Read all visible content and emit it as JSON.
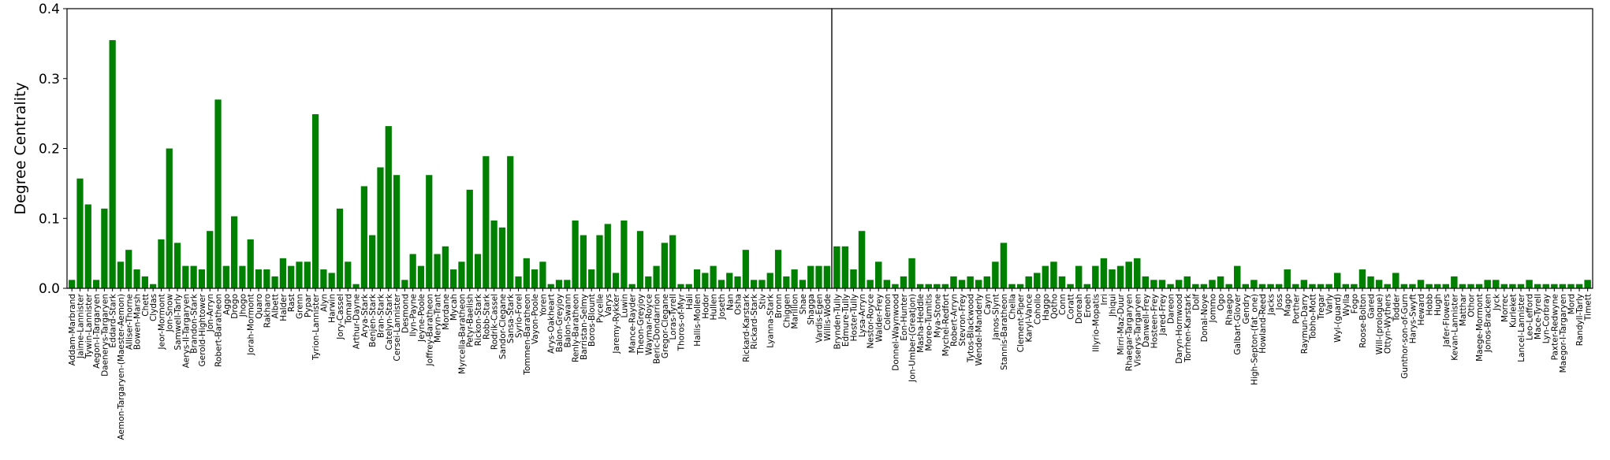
{
  "chart_data": [
    {
      "type": "bar",
      "y_label": "Degree Centrality",
      "color": "#008000",
      "ylim": [
        0,
        0.4
      ],
      "yticks": [
        {
          "value": 0,
          "label": "0.0"
        },
        0.1,
        0.2,
        0.3,
        0.4
      ],
      "categories": [
        "Addam-Marbrand",
        "Jaime-Lannister",
        "Tywin-Lannister",
        "Aegon-I-Targaryen",
        "Daenerys-Targaryen",
        "Eddard-Stark",
        "Aemon-Targaryen-(Maester-Aemon)",
        "Alliser-Thorne",
        "Bowen-Marsh",
        "Chett",
        "Clydas",
        "Jeor-Mormont",
        "Jon-Snow",
        "Samwell-Tarly",
        "Aerys-II-Targaryen",
        "Brandon-Stark",
        "Gerold-Hightower",
        "Jon-Arryn",
        "Robert-Baratheon",
        "Aggo",
        "Drogo",
        "Jhogo",
        "Jorah-Mormont",
        "Quaro",
        "Rakharo",
        "Albett",
        "Halder",
        "Rast",
        "Grenn",
        "Pypar",
        "Tyrion-Lannister",
        "Alyn",
        "Harwin",
        "Jory-Cassel",
        "Tomard",
        "Arthur-Dayne",
        "Arya-Stark",
        "Benjen-Stark",
        "Bran-Stark",
        "Catelyn-Stark",
        "Cersei-Lannister",
        "Desmond",
        "Ilyn-Payne",
        "Jeyne-Poole",
        "Joffrey-Baratheon",
        "Meryn-Trant",
        "Mordane",
        "Mycah",
        "Myrcella-Baratheon",
        "Petyr-Baelish",
        "Rickon-Stark",
        "Robb-Stark",
        "Rodrik-Cassel",
        "Sandor-Clegane",
        "Sansa-Stark",
        "Syrio-Forel",
        "Tommen-Baratheon",
        "Vayon-Poole",
        "Yoren",
        "Arys-Oakheart",
        "Balon-Greyjoy",
        "Balon-Swann",
        "Renly-Baratheon",
        "Barristan-Selmy",
        "Boros-Blount",
        "Pycelle",
        "Varys",
        "Jaremy-Rykker",
        "Luwin",
        "Mance-Rayder",
        "Theon-Greyjoy",
        "Waymar-Royce",
        "Beric-Dondarrion",
        "Gregor-Clegane",
        "Loras-Tyrell",
        "Thoros-of-Myr",
        "Hali",
        "Hallis-Mollen",
        "Hodor",
        "Hullen",
        "Joseth",
        "Nan",
        "Osha",
        "Rickard-Karstark",
        "Rickard-Stark",
        "Stiv",
        "Lyanna-Stark",
        "Bronn",
        "Chiggen",
        "Marillion",
        "Shae",
        "Shagga",
        "Vardis-Egen",
        "Willis-Wode"
      ],
      "values": [
        0.012,
        0.157,
        0.12,
        0.012,
        0.114,
        0.355,
        0.038,
        0.055,
        0.027,
        0.017,
        0.006,
        0.07,
        0.2,
        0.065,
        0.032,
        0.032,
        0.027,
        0.082,
        0.27,
        0.032,
        0.103,
        0.032,
        0.07,
        0.027,
        0.027,
        0.017,
        0.043,
        0.032,
        0.038,
        0.038,
        0.249,
        0.027,
        0.022,
        0.114,
        0.038,
        0.006,
        0.146,
        0.076,
        0.173,
        0.232,
        0.162,
        0.012,
        0.049,
        0.032,
        0.162,
        0.049,
        0.06,
        0.027,
        0.038,
        0.141,
        0.049,
        0.189,
        0.097,
        0.087,
        0.189,
        0.017,
        0.043,
        0.027,
        0.038,
        0.006,
        0.012,
        0.012,
        0.097,
        0.076,
        0.027,
        0.076,
        0.092,
        0.022,
        0.097,
        0.006,
        0.082,
        0.017,
        0.032,
        0.065,
        0.076,
        0.006,
        0.006,
        0.027,
        0.022,
        0.032,
        0.012,
        0.022,
        0.017,
        0.055,
        0.012,
        0.012,
        0.022,
        0.055,
        0.017,
        0.027,
        0.012,
        0.032,
        0.032,
        0.032
      ]
    },
    {
      "type": "bar",
      "color": "#008000",
      "ylim": [
        0,
        0.4
      ],
      "categories": [
        "Brynden-Tully",
        "Edmure-Tully",
        "Hoster-Tully",
        "Lysa-Arryn",
        "Nestor-Royce",
        "Walder-Frey",
        "Colemon",
        "Donnel-Waynwood",
        "Eon-Hunter",
        "Jon-Umber-(Greatjon)",
        "Masha-Heddle",
        "Moreo-Tumitis",
        "Mya-Stone",
        "Mychel-Redfort",
        "Robert-Arryn",
        "Stevron-Frey",
        "Tytos-Blackwood",
        "Wendel-Manderly",
        "Cayn",
        "Janos-Slynt",
        "Stannis-Baratheon",
        "Chella",
        "Clement-Piper",
        "Karyl-Vance",
        "Cohollo",
        "Haggo",
        "Qotho",
        "Conn",
        "Coratt",
        "Doreah",
        "Eroeh",
        "Illyrio-Mopatis",
        "Irri",
        "Jhiqui",
        "Mirri-Maz-Duur",
        "Rhaegar-Targaryen",
        "Viserys-Targaryen",
        "Danwell-Frey",
        "Hosteen-Frey",
        "Jared-Frey",
        "Dareon",
        "Daryn-Hornwood",
        "Torrhen-Karstark",
        "Dolf",
        "Donal-Noye",
        "Jommo",
        "Ogo",
        "Rhaego",
        "Galbart-Glover",
        "Gendry",
        "High-Septon-(fat_one)",
        "Howland-Reed",
        "Jacks",
        "Joss",
        "Mago",
        "Porther",
        "Raymun-Darry",
        "Tobho-Mott",
        "Tregar",
        "Varly",
        "Wyl-(guard)",
        "Wylla",
        "Fogo",
        "Roose-Bolton",
        "Gared",
        "Will-(prologue)",
        "Ottyn-Wythers",
        "Todder",
        "Gunthor-son-of-Gurn",
        "Harys-Swyft",
        "Heward",
        "Hobb",
        "Hugh",
        "Jafer-Flowers",
        "Kevan-Lannister",
        "Matthar",
        "Othor",
        "Maege-Mormont",
        "Jonos-Bracken",
        "Jyck",
        "Morrec",
        "Kurleket",
        "Lancel-Lannister",
        "Leo-Lefford",
        "Mace-Tyrell",
        "Lyn-Corbray",
        "Paxter-Redwyne",
        "Maegor-I-Targaryen",
        "Mord",
        "Randyll-Tarly",
        "Timett"
      ],
      "values": [
        0.06,
        0.06,
        0.027,
        0.082,
        0.012,
        0.038,
        0.012,
        0.006,
        0.017,
        0.043,
        0.006,
        0.006,
        0.006,
        0.006,
        0.017,
        0.012,
        0.017,
        0.012,
        0.017,
        0.038,
        0.065,
        0.006,
        0.006,
        0.017,
        0.022,
        0.032,
        0.038,
        0.017,
        0.006,
        0.032,
        0.006,
        0.032,
        0.043,
        0.027,
        0.032,
        0.038,
        0.043,
        0.017,
        0.012,
        0.012,
        0.006,
        0.012,
        0.017,
        0.006,
        0.006,
        0.012,
        0.017,
        0.006,
        0.032,
        0.006,
        0.012,
        0.006,
        0.006,
        0.006,
        0.027,
        0.006,
        0.012,
        0.006,
        0.006,
        0.006,
        0.022,
        0.006,
        0.006,
        0.027,
        0.017,
        0.012,
        0.006,
        0.022,
        0.006,
        0.006,
        0.012,
        0.006,
        0.006,
        0.006,
        0.017,
        0.006,
        0.006,
        0.006,
        0.012,
        0.012,
        0.006,
        0.006,
        0.006,
        0.012,
        0.006,
        0.006,
        0.006,
        0.006,
        0.006,
        0.006,
        0.012
      ]
    }
  ]
}
